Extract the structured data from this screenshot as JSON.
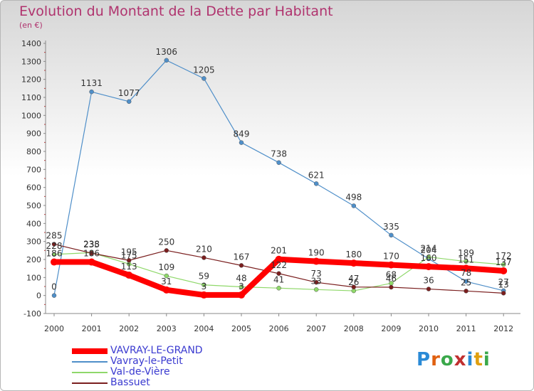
{
  "title": "Evolution du Montant de la Dette par Habitant",
  "subtitle": "(en €)",
  "logo_text": "Proxiti",
  "chart_data": {
    "type": "line",
    "title": "Evolution du Montant de la Dette par Habitant",
    "ylabel": "(en €)",
    "xlabel": "",
    "ylim": [
      -100,
      1400
    ],
    "yticks": [
      -100,
      0,
      100,
      200,
      300,
      400,
      500,
      600,
      700,
      800,
      900,
      1000,
      1100,
      1200,
      1300,
      1400
    ],
    "x": [
      "2000",
      "2001",
      "2002",
      "2003",
      "2004",
      "2005",
      "2006",
      "2007",
      "2008",
      "2009",
      "2010",
      "2011",
      "2012"
    ],
    "grid": false,
    "legend": "bottom-left",
    "series": [
      {
        "name": "VAVRAY-LE-GRAND",
        "color": "#ff0000",
        "values": [
          186,
          186,
          113,
          31,
          3,
          3,
          201,
          190,
          180,
          170,
          160,
          151,
          137
        ]
      },
      {
        "name": "Vavray-le-Petit",
        "color": "#4f8fc9",
        "values": [
          0,
          1131,
          1077,
          1306,
          1205,
          849,
          738,
          621,
          498,
          335,
          204,
          78,
          27
        ]
      },
      {
        "name": "Val-de-Vière",
        "color": "#8fd86a",
        "values": [
          228,
          238,
          175,
          109,
          59,
          48,
          41,
          33,
          26,
          68,
          214,
          189,
          172
        ]
      },
      {
        "name": "Bassuet",
        "color": "#7a1e1e",
        "values": [
          285,
          235,
          195,
          250,
          210,
          167,
          122,
          73,
          47,
          46,
          36,
          25,
          13
        ]
      }
    ],
    "labels": [
      [
        "186",
        "186",
        "113",
        "31",
        "3",
        "3",
        "201",
        "190",
        "180",
        "170",
        "160",
        "151",
        "137"
      ],
      [
        "0",
        "1131",
        "1077",
        "1306",
        "1205",
        "849",
        "738",
        "621",
        "498",
        "335",
        "204",
        "78",
        "27"
      ],
      [
        "228",
        "238",
        "175",
        "109",
        "59",
        "48",
        "41",
        "33",
        "26",
        "68",
        "214",
        "189",
        "172"
      ],
      [
        "285",
        "235",
        "195",
        "250",
        "210",
        "167",
        "122",
        "73",
        "47",
        "46",
        "36",
        "25",
        "13"
      ]
    ]
  }
}
